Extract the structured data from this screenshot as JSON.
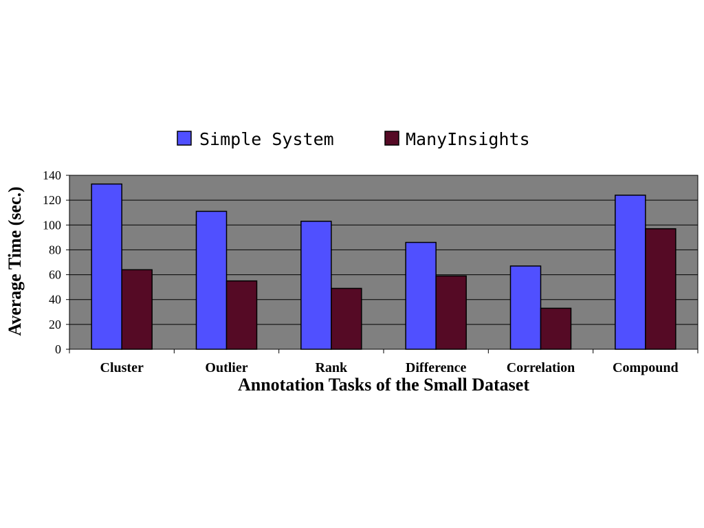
{
  "chart_data": {
    "type": "bar",
    "categories": [
      "Cluster",
      "Outlier",
      "Rank",
      "Difference",
      "Correlation",
      "Compound"
    ],
    "series": [
      {
        "name": "Simple System",
        "values": [
          133,
          111,
          103,
          86,
          67,
          124
        ],
        "color": "#5050ff"
      },
      {
        "name": "ManyInsights",
        "values": [
          64,
          55,
          49,
          59,
          33,
          97
        ],
        "color": "#550a25"
      }
    ],
    "xlabel": "Annotation Tasks of the Small Dataset",
    "ylabel": "Average Time (sec.)",
    "ylim": [
      0,
      140
    ],
    "yticks": [
      0,
      20,
      40,
      60,
      80,
      100,
      120,
      140
    ],
    "grid": true,
    "legend_position": "top",
    "plot_background": "#808080"
  }
}
